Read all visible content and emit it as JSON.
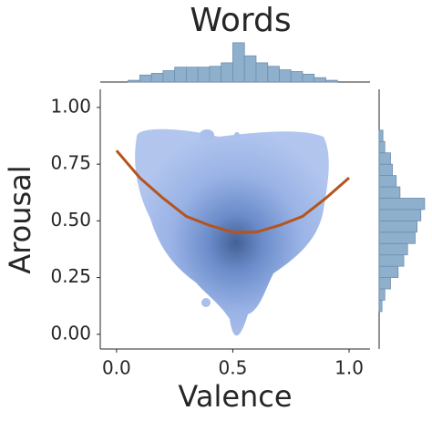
{
  "chart_data": {
    "type": "joint",
    "title": "Words",
    "xlabel": "Valence",
    "ylabel": "Arousal",
    "xlim": [
      -0.07,
      1.09
    ],
    "ylim": [
      -0.065,
      1.08
    ],
    "xticks": [
      {
        "value": 0,
        "label": "0.0"
      },
      {
        "value": 0.5,
        "label": "0.5"
      },
      {
        "value": 1,
        "label": "1.0"
      }
    ],
    "yticks": [
      {
        "value": 0,
        "label": "0.00"
      },
      {
        "value": 0.25,
        "label": "0.25"
      },
      {
        "value": 0.5,
        "label": "0.50"
      },
      {
        "value": 0.75,
        "label": "0.75"
      },
      {
        "value": 1,
        "label": "1.00"
      }
    ],
    "series": [
      {
        "color": "#b5541c",
        "x": [
          0,
          0.1,
          0.2,
          0.3,
          0.4,
          0.5,
          0.6,
          0.7,
          0.8,
          0.9,
          1.0
        ],
        "values": [
          0.81,
          0.69,
          0.6,
          0.52,
          0.48,
          0.45,
          0.45,
          0.48,
          0.52,
          0.6,
          0.69
        ]
      }
    ],
    "x_hist": {
      "color": "#8fb0cc",
      "lim": [
        0,
        48
      ],
      "bins": [
        0.05,
        0.1,
        0.15,
        0.2,
        0.25,
        0.3,
        0.35,
        0.4,
        0.45,
        0.5,
        0.55,
        0.6,
        0.65,
        0.7,
        0.75,
        0.8,
        0.85,
        0.9,
        0.95
      ],
      "counts": [
        2,
        8,
        10,
        13,
        17,
        17,
        17,
        18,
        22,
        45,
        30,
        22,
        18,
        14,
        12,
        9,
        5,
        2
      ]
    },
    "y_hist": {
      "color": "#8fb0cc",
      "lim": [
        0,
        50
      ],
      "bins": [
        0.1,
        0.15,
        0.2,
        0.25,
        0.3,
        0.35,
        0.4,
        0.45,
        0.5,
        0.55,
        0.6,
        0.65,
        0.7,
        0.75,
        0.8,
        0.85,
        0.9
      ],
      "counts": [
        3,
        6,
        12,
        20,
        26,
        30,
        38,
        40,
        44,
        48,
        22,
        18,
        14,
        12,
        6,
        4
      ]
    }
  }
}
